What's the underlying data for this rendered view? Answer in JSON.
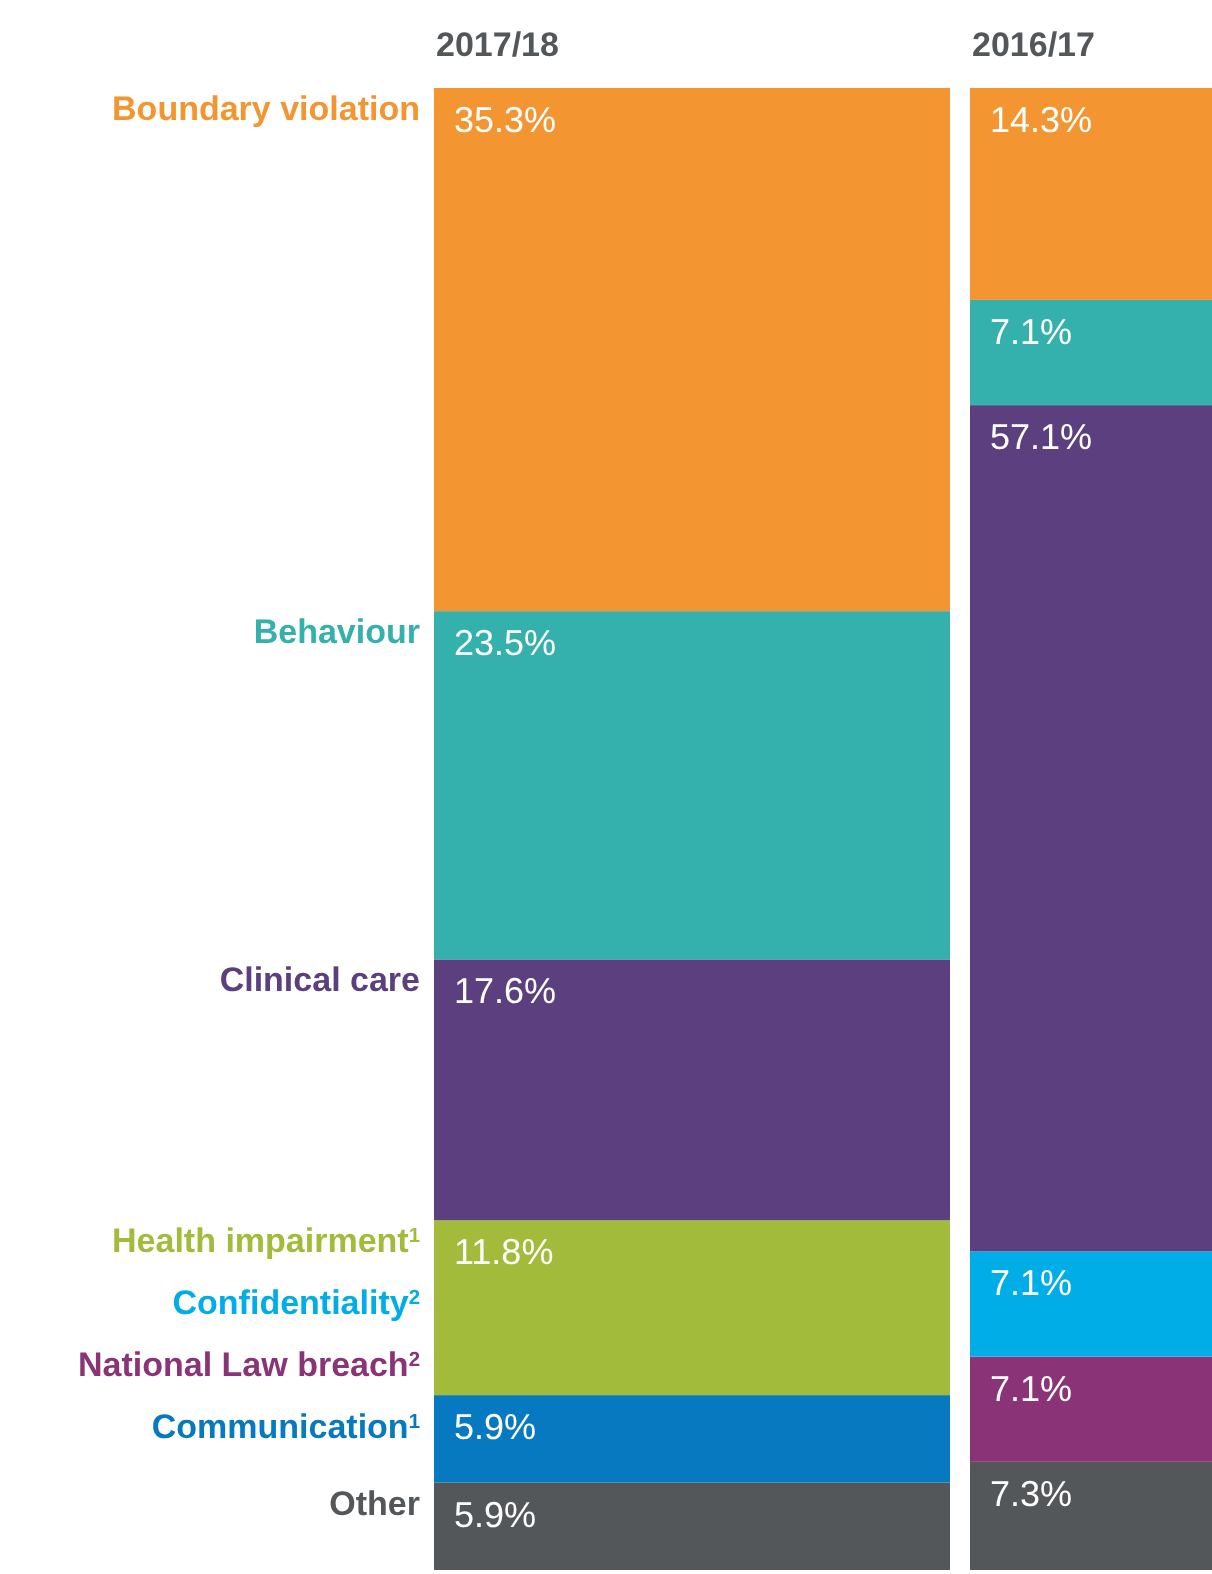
{
  "chart_data": {
    "type": "bar",
    "stacked": true,
    "categories": [
      "2017/18",
      "2016/17"
    ],
    "legend": "left",
    "series": [
      {
        "name": "Other",
        "color": "#54575a",
        "values": [
          5.9,
          7.3
        ],
        "value_labels": [
          "5.9%",
          "7.3%"
        ]
      },
      {
        "name": "Communication$^{1}$",
        "color": "#0679c0",
        "values": [
          5.9,
          null
        ],
        "value_labels": [
          "5.9%",
          null
        ]
      },
      {
        "name": "National Law breach$^{2}$",
        "color": "#8a3377",
        "values": [
          null,
          7.1
        ],
        "value_labels": [
          null,
          "7.1%"
        ]
      },
      {
        "name": "Confidentiality$^{2}$",
        "color": "#00ade6",
        "values": [
          null,
          7.1
        ],
        "value_labels": [
          null,
          "7.1%"
        ]
      },
      {
        "name": "Health impairment$^{1}$",
        "color": "#a2bb3a",
        "values": [
          11.8,
          null
        ],
        "value_labels": [
          "11.8%",
          null
        ]
      },
      {
        "name": "Clinical care",
        "color": "#5b3f7e",
        "values": [
          17.6,
          57.1
        ],
        "value_labels": [
          "17.6%",
          "57.1%"
        ]
      },
      {
        "name": "Behaviour",
        "color": "#34b0ad",
        "values": [
          23.5,
          7.1
        ],
        "value_labels": [
          "23.5%",
          "7.1%"
        ]
      },
      {
        "name": "Boundary violation",
        "color": "#f39530",
        "values": [
          35.3,
          14.3
        ],
        "value_labels": [
          "35.3%",
          "14.3%"
        ]
      }
    ]
  }
}
